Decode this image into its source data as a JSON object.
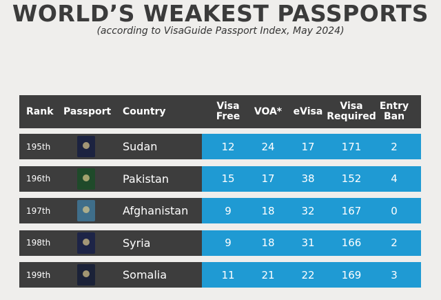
{
  "header": {
    "title": "WORLD’S WEAKEST PASSPORTS",
    "subtitle": "(according to VisaGuide Passport Index, May 2024)"
  },
  "table": {
    "columns": [
      "Rank",
      "Passport",
      "Country",
      "Visa Free",
      "VOA*",
      "eVisa",
      "Visa Required",
      "Entry Ban"
    ],
    "rows": [
      {
        "rank": "195th",
        "country": "Sudan",
        "values": [
          12,
          24,
          17,
          171,
          2
        ]
      },
      {
        "rank": "196th",
        "country": "Pakistan",
        "values": [
          15,
          17,
          38,
          152,
          4
        ]
      },
      {
        "rank": "197th",
        "country": "Afghanistan",
        "values": [
          9,
          18,
          32,
          167,
          0
        ]
      },
      {
        "rank": "198th",
        "country": "Syria",
        "values": [
          9,
          18,
          31,
          166,
          2
        ]
      },
      {
        "rank": "199th",
        "country": "Somalia",
        "values": [
          11,
          21,
          22,
          169,
          3
        ]
      }
    ]
  }
}
